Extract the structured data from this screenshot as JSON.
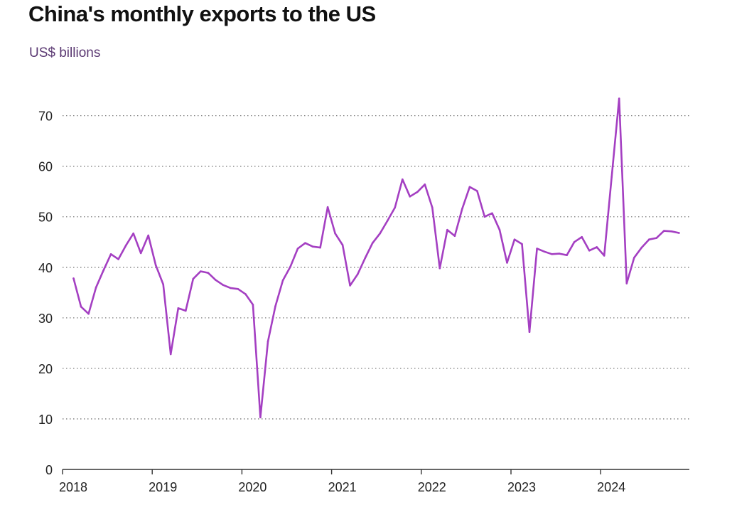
{
  "title": "China's monthly exports to the US",
  "subtitle": "US$ billions",
  "chart_data": {
    "type": "line",
    "title": "China's monthly exports to the US",
    "subtitle": "US$ billions",
    "xlabel": "",
    "ylabel": "US$ billions",
    "x_tick_labels": [
      "2018",
      "2019",
      "2020",
      "2021",
      "2022",
      "2023",
      "2024"
    ],
    "y_tick_labels": [
      "0",
      "10",
      "20",
      "30",
      "40",
      "50",
      "60",
      "70"
    ],
    "ylim": [
      0,
      76
    ],
    "xlim": [
      "2018-01",
      "2024-12"
    ],
    "grid": "horizontal dotted",
    "legend": "none",
    "line_color": "#a43fc2",
    "series": [
      {
        "x": [
          "2018-02",
          "2018-03",
          "2018-04",
          "2018-05",
          "2018-06",
          "2018-07",
          "2018-08",
          "2018-09",
          "2018-10",
          "2018-11",
          "2018-12",
          "2019-01",
          "2019-02",
          "2019-03",
          "2019-04",
          "2019-05",
          "2019-06",
          "2019-07",
          "2019-08",
          "2019-09",
          "2019-10",
          "2019-11",
          "2019-12",
          "2020-01",
          "2020-02",
          "2020-03",
          "2020-04",
          "2020-05",
          "2020-06",
          "2020-07",
          "2020-08",
          "2020-09",
          "2020-10",
          "2020-11",
          "2020-12",
          "2021-01",
          "2021-02",
          "2021-03",
          "2021-04",
          "2021-05",
          "2021-06",
          "2021-07",
          "2021-08",
          "2021-09",
          "2021-10",
          "2021-11",
          "2021-12",
          "2022-01",
          "2022-02",
          "2022-03",
          "2022-04",
          "2022-05",
          "2022-06",
          "2022-07",
          "2022-08",
          "2022-09",
          "2022-10",
          "2022-11",
          "2022-12",
          "2023-01",
          "2023-02",
          "2023-03",
          "2023-04",
          "2023-05",
          "2023-06",
          "2023-07",
          "2023-08",
          "2023-09",
          "2023-10",
          "2023-11",
          "2023-12",
          "2024-01",
          "2024-02",
          "2024-03",
          "2024-04",
          "2024-05",
          "2024-06",
          "2024-07",
          "2024-08",
          "2024-09",
          "2024-10",
          "2024-11"
        ],
        "values": [
          37.8,
          32.2,
          30.8,
          36.0,
          39.4,
          42.6,
          41.6,
          44.3,
          46.7,
          42.8,
          46.3,
          40.4,
          36.6,
          22.8,
          31.9,
          31.4,
          37.7,
          39.2,
          38.9,
          37.5,
          36.5,
          35.9,
          35.7,
          34.7,
          32.6,
          10.3,
          25.3,
          32.3,
          37.4,
          40.1,
          43.7,
          44.8,
          44.1,
          43.9,
          51.9,
          46.7,
          44.4,
          36.4,
          38.6,
          41.8,
          44.8,
          46.7,
          49.2,
          51.8,
          57.4,
          54.0,
          54.9,
          56.4,
          51.8,
          39.8,
          47.4,
          46.2,
          51.6,
          55.9,
          55.1,
          50.0,
          50.7,
          47.4,
          40.9,
          45.5,
          44.6,
          27.2,
          43.7,
          43.1,
          42.6,
          42.7,
          42.4,
          45.0,
          46.0,
          43.3,
          44.0,
          42.3,
          57.9,
          73.4,
          36.8,
          41.9,
          43.9,
          45.5,
          45.8,
          47.2,
          47.1,
          46.8
        ]
      }
    ]
  }
}
